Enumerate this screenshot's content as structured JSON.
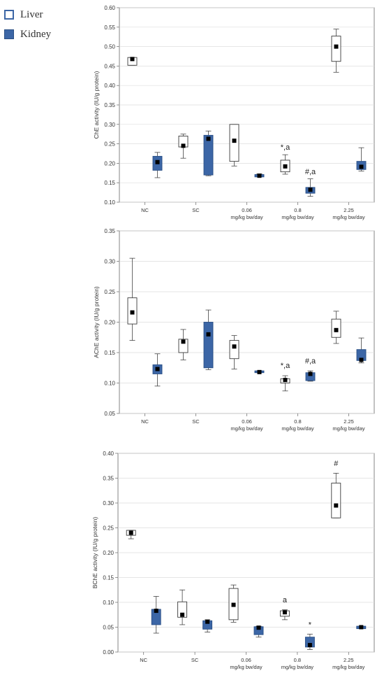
{
  "legend": {
    "liver": "Liver",
    "kidney": "Kidney",
    "liver_color": "#ffffff",
    "kidney_color": "#3c66a6"
  },
  "chart_data": [
    {
      "type": "box",
      "ylabel": "ChE activity (IU/g protein)",
      "ylim": [
        0.1,
        0.6
      ],
      "yticks": [
        0.1,
        0.15,
        0.2,
        0.25,
        0.3,
        0.35,
        0.4,
        0.45,
        0.5,
        0.55,
        0.6
      ],
      "grid": true,
      "categories": [
        "NC",
        "SC",
        "0.06\nmg/kg bw/day",
        "0.8\nmg/kg bw/day",
        "2.25\nmg/kg bw/day"
      ],
      "series": [
        {
          "name": "Liver",
          "boxes": [
            {
              "min": 0.452,
              "q1": 0.452,
              "median": 0.468,
              "q3": 0.472,
              "max": 0.472
            },
            {
              "min": 0.213,
              "q1": 0.242,
              "median": 0.245,
              "q3": 0.27,
              "max": 0.275
            },
            {
              "min": 0.193,
              "q1": 0.205,
              "median": 0.258,
              "q3": 0.3,
              "max": 0.3
            },
            {
              "min": 0.172,
              "q1": 0.178,
              "median": 0.192,
              "q3": 0.208,
              "max": 0.222
            },
            {
              "min": 0.434,
              "q1": 0.462,
              "median": 0.5,
              "q3": 0.527,
              "max": 0.545
            }
          ]
        },
        {
          "name": "Kidney",
          "boxes": [
            {
              "min": 0.163,
              "q1": 0.182,
              "median": 0.203,
              "q3": 0.218,
              "max": 0.228
            },
            {
              "min": 0.168,
              "q1": 0.17,
              "median": 0.263,
              "q3": 0.272,
              "max": 0.283
            },
            {
              "min": 0.165,
              "q1": 0.165,
              "median": 0.168,
              "q3": 0.171,
              "max": 0.173
            },
            {
              "min": 0.115,
              "q1": 0.123,
              "median": 0.132,
              "q3": 0.138,
              "max": 0.16
            },
            {
              "min": 0.18,
              "q1": 0.184,
              "median": 0.191,
              "q3": 0.205,
              "max": 0.24
            }
          ]
        }
      ],
      "annotations": [
        {
          "category": 3,
          "series": 0,
          "text": "*,a",
          "value": 0.235
        },
        {
          "category": 3,
          "series": 1,
          "text": "#,a",
          "value": 0.172
        }
      ]
    },
    {
      "type": "box",
      "ylabel": "AChE activity (IU/g protein)",
      "ylim": [
        0.05,
        0.35
      ],
      "yticks": [
        0.05,
        0.1,
        0.15,
        0.2,
        0.25,
        0.3,
        0.35
      ],
      "grid": true,
      "categories": [
        "NC",
        "SC",
        "0.06\nmg/kg bw/day",
        "0.8\nmg/kg bw/day",
        "2.25\nmg/kg bw/day"
      ],
      "series": [
        {
          "name": "Liver",
          "boxes": [
            {
              "min": 0.17,
              "q1": 0.197,
              "median": 0.216,
              "q3": 0.24,
              "max": 0.305
            },
            {
              "min": 0.138,
              "q1": 0.15,
              "median": 0.168,
              "q3": 0.172,
              "max": 0.188
            },
            {
              "min": 0.123,
              "q1": 0.14,
              "median": 0.16,
              "q3": 0.17,
              "max": 0.178
            },
            {
              "min": 0.087,
              "q1": 0.1,
              "median": 0.105,
              "q3": 0.107,
              "max": 0.112
            },
            {
              "min": 0.165,
              "q1": 0.175,
              "median": 0.187,
              "q3": 0.205,
              "max": 0.218
            }
          ]
        },
        {
          "name": "Kidney",
          "boxes": [
            {
              "min": 0.095,
              "q1": 0.115,
              "median": 0.123,
              "q3": 0.13,
              "max": 0.148
            },
            {
              "min": 0.122,
              "q1": 0.125,
              "median": 0.18,
              "q3": 0.2,
              "max": 0.22
            },
            {
              "min": 0.117,
              "q1": 0.117,
              "median": 0.118,
              "q3": 0.12,
              "max": 0.12
            },
            {
              "min": 0.103,
              "q1": 0.104,
              "median": 0.115,
              "q3": 0.117,
              "max": 0.12
            },
            {
              "min": 0.133,
              "q1": 0.137,
              "median": 0.138,
              "q3": 0.155,
              "max": 0.174
            }
          ]
        }
      ],
      "annotations": [
        {
          "category": 3,
          "series": 0,
          "text": "*,a",
          "value": 0.125
        },
        {
          "category": 3,
          "series": 1,
          "text": "#,a",
          "value": 0.132
        }
      ]
    },
    {
      "type": "box",
      "ylabel": "BChE activity (IU/g protein)",
      "ylim": [
        0.0,
        0.4
      ],
      "yticks": [
        0.0,
        0.05,
        0.1,
        0.15,
        0.2,
        0.25,
        0.3,
        0.35,
        0.4
      ],
      "grid": true,
      "categories": [
        "NC",
        "SC",
        "0.06\nmg/kg bw/day",
        "0.8\nmg/kg bw/day",
        "2.25\nmg/kg bw/day"
      ],
      "series": [
        {
          "name": "Liver",
          "boxes": [
            {
              "min": 0.228,
              "q1": 0.235,
              "median": 0.24,
              "q3": 0.245,
              "max": 0.245
            },
            {
              "min": 0.055,
              "q1": 0.07,
              "median": 0.075,
              "q3": 0.101,
              "max": 0.125
            },
            {
              "min": 0.06,
              "q1": 0.065,
              "median": 0.095,
              "q3": 0.128,
              "max": 0.135
            },
            {
              "min": 0.065,
              "q1": 0.072,
              "median": 0.08,
              "q3": 0.083,
              "max": 0.085
            },
            {
              "min": 0.27,
              "q1": 0.27,
              "median": 0.295,
              "q3": 0.34,
              "max": 0.36
            }
          ]
        },
        {
          "name": "Kidney",
          "boxes": [
            {
              "min": 0.038,
              "q1": 0.055,
              "median": 0.083,
              "q3": 0.086,
              "max": 0.112
            },
            {
              "min": 0.04,
              "q1": 0.046,
              "median": 0.061,
              "q3": 0.063,
              "max": 0.065
            },
            {
              "min": 0.03,
              "q1": 0.035,
              "median": 0.049,
              "q3": 0.051,
              "max": 0.052
            },
            {
              "min": 0.005,
              "q1": 0.01,
              "median": 0.014,
              "q3": 0.03,
              "max": 0.036
            },
            {
              "min": 0.047,
              "q1": 0.047,
              "median": 0.05,
              "q3": 0.052,
              "max": 0.052
            }
          ]
        }
      ],
      "annotations": [
        {
          "category": 3,
          "series": 0,
          "text": "a",
          "value": 0.1
        },
        {
          "category": 3,
          "series": 1,
          "text": "*",
          "value": 0.05
        },
        {
          "category": 4,
          "series": 0,
          "text": "#",
          "value": 0.375
        }
      ]
    }
  ]
}
